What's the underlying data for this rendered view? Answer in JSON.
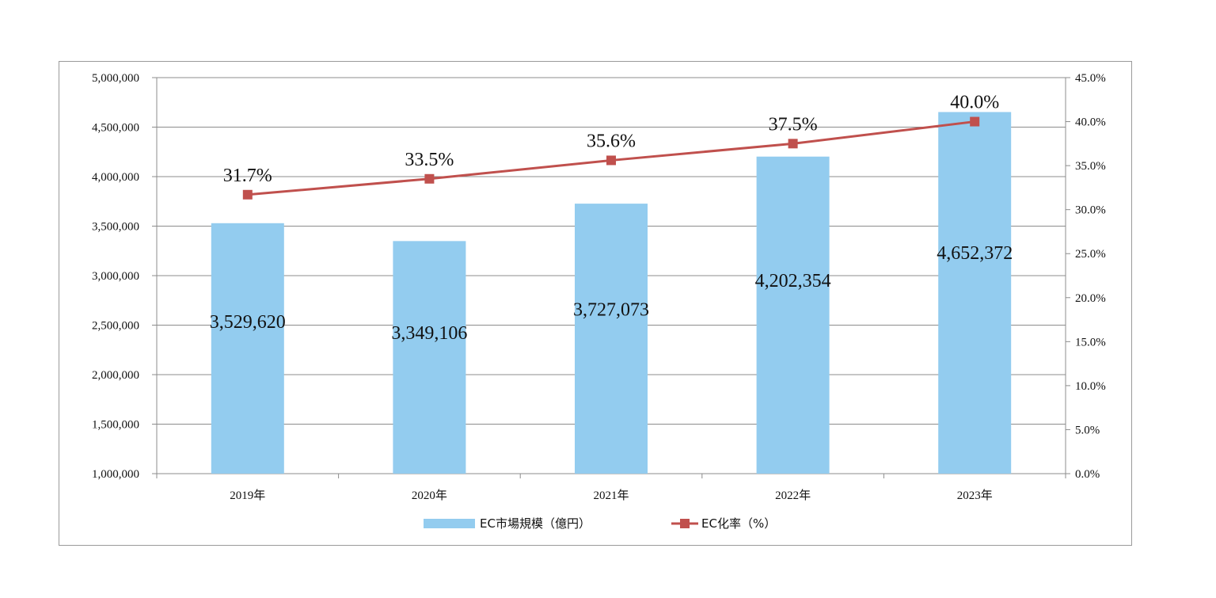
{
  "chart_data": {
    "type": "bar",
    "title": "",
    "xlabel": "",
    "ylabel": "",
    "categories": [
      "2019年",
      "2020年",
      "2021年",
      "2022年",
      "2023年"
    ],
    "series": [
      {
        "name": "EC市場規模（億円）",
        "type": "bar",
        "axis": "left",
        "color": "#93CCEF",
        "values": [
          3529620,
          3349106,
          3727073,
          4202354,
          4652372
        ],
        "labels": [
          "3,529,620",
          "3,349,106",
          "3,727,073",
          "4,202,354",
          "4,652,372"
        ]
      },
      {
        "name": "EC化率（%）",
        "type": "line",
        "axis": "right",
        "color": "#C0504D",
        "values": [
          31.7,
          33.5,
          35.6,
          37.5,
          40.0
        ],
        "labels": [
          "31.7%",
          "33.5%",
          "35.6%",
          "37.5%",
          "40.0%"
        ]
      }
    ],
    "y_left": {
      "ylim": [
        1000000,
        5000000
      ],
      "ticks": [
        1000000,
        1500000,
        2000000,
        2500000,
        3000000,
        3500000,
        4000000,
        4500000,
        5000000
      ],
      "tick_labels": [
        "1,000,000",
        "1,500,000",
        "2,000,000",
        "2,500,000",
        "3,000,000",
        "3,500,000",
        "4,000,000",
        "4,500,000",
        "5,000,000"
      ]
    },
    "y_right": {
      "ylim": [
        0,
        45
      ],
      "ticks": [
        0,
        5,
        10,
        15,
        20,
        25,
        30,
        35,
        40,
        45
      ],
      "tick_labels": [
        "0.0%",
        "5.0%",
        "10.0%",
        "15.0%",
        "20.0%",
        "25.0%",
        "30.0%",
        "35.0%",
        "40.0%",
        "45.0%"
      ]
    },
    "grid": true,
    "legend_position": "bottom-center"
  }
}
